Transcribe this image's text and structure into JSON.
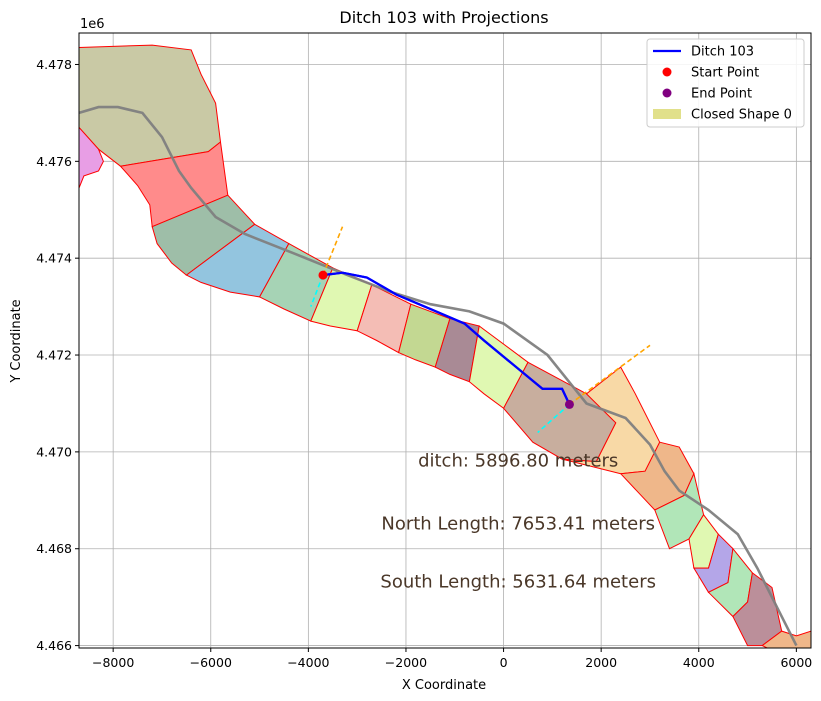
{
  "chart_data": {
    "type": "line",
    "title": "Ditch 103 with Projections",
    "xlabel": "X Coordinate",
    "ylabel": "Y Coordinate",
    "y_offset_label": "1e6",
    "xlim": [
      -8700,
      6300
    ],
    "ylim": [
      4.46595,
      4.47865
    ],
    "grid": true,
    "x_ticks": [
      -8000,
      -6000,
      -4000,
      -2000,
      0,
      2000,
      4000,
      6000
    ],
    "x_tick_labels": [
      "−8000",
      "−6000",
      "−4000",
      "−2000",
      "0",
      "2000",
      "4000",
      "6000"
    ],
    "y_ticks": [
      4.466,
      4.468,
      4.47,
      4.472,
      4.474,
      4.476,
      4.478
    ],
    "y_tick_labels": [
      "4.466",
      "4.468",
      "4.470",
      "4.472",
      "4.474",
      "4.476",
      "4.478"
    ],
    "legend": {
      "placement": "top-right",
      "items": [
        {
          "label": "Ditch 103",
          "kind": "line",
          "color": "#0000ff"
        },
        {
          "label": "Start Point",
          "kind": "dot",
          "color": "#ff0000"
        },
        {
          "label": "End Point",
          "kind": "dot",
          "color": "#800080"
        },
        {
          "label": "Closed Shape 0",
          "kind": "patch",
          "color": "#e1e08a"
        }
      ]
    },
    "annotations": [
      {
        "text": "ditch: 5896.80 meters",
        "x": 300,
        "y": 4.4697
      },
      {
        "text": "North Length: 7653.41 meters",
        "x": 300,
        "y": 4.4684
      },
      {
        "text": "South Length: 5631.64 meters",
        "x": 300,
        "y": 4.4672
      }
    ],
    "series": [
      {
        "name": "Ditch 103",
        "color": "#0000ff",
        "points": [
          [
            -3700,
            4.47365
          ],
          [
            -3300,
            4.4737
          ],
          [
            -2800,
            4.4736
          ],
          [
            -2200,
            4.47325
          ],
          [
            -1500,
            4.47295
          ],
          [
            -800,
            4.47265
          ],
          [
            -400,
            4.4723
          ],
          [
            200,
            4.4718
          ],
          [
            800,
            4.4713
          ],
          [
            1200,
            4.4713
          ],
          [
            1350,
            4.47098
          ]
        ]
      },
      {
        "color": "#808080",
        "points": [
          [
            -8700,
            4.477
          ],
          [
            -8300,
            4.47712
          ],
          [
            -7900,
            4.47712
          ],
          [
            -7400,
            4.477
          ],
          [
            -7000,
            4.4765
          ],
          [
            -6650,
            4.4758
          ],
          [
            -6400,
            4.47545
          ],
          [
            -5900,
            4.47485
          ],
          [
            -5300,
            4.4745
          ],
          [
            -4300,
            4.4741
          ],
          [
            -3200,
            4.47365
          ],
          [
            -2300,
            4.4733
          ],
          [
            -1500,
            4.47305
          ],
          [
            -700,
            4.4729
          ],
          [
            0,
            4.47265
          ],
          [
            900,
            4.472
          ],
          [
            1700,
            4.471
          ],
          [
            2500,
            4.4707
          ],
          [
            3000,
            4.47015
          ],
          [
            3300,
            4.4696
          ],
          [
            3600,
            4.4692
          ],
          [
            4200,
            4.4688
          ],
          [
            4800,
            4.4683
          ],
          [
            5200,
            4.4676
          ],
          [
            5600,
            4.4668
          ],
          [
            6000,
            4.466
          ]
        ]
      },
      {
        "color": "#ffa500",
        "dashed": true,
        "points": [
          [
            -3700,
            4.47365
          ],
          [
            -3300,
            4.47465
          ]
        ]
      },
      {
        "color": "#00ffff",
        "dashed": true,
        "points": [
          [
            -3700,
            4.47365
          ],
          [
            -3950,
            4.473
          ]
        ]
      },
      {
        "color": "#ffa500",
        "dashed": true,
        "points": [
          [
            1350,
            4.47098
          ],
          [
            3000,
            4.4722
          ]
        ]
      },
      {
        "color": "#00ffff",
        "dashed": true,
        "points": [
          [
            1350,
            4.47098
          ],
          [
            700,
            4.4704
          ]
        ]
      }
    ],
    "start_point": {
      "x": -3700,
      "y": 4.47365,
      "color": "#ff0000"
    },
    "end_point": {
      "x": 1350,
      "y": 4.47098,
      "color": "#800080"
    },
    "polygons": [
      {
        "color": "#c9c9a5",
        "points": [
          [
            -8700,
            4.47835
          ],
          [
            -7200,
            4.4784
          ],
          [
            -6400,
            4.4783
          ],
          [
            -6200,
            4.4778
          ],
          [
            -5900,
            4.4772
          ],
          [
            -5800,
            4.4764
          ],
          [
            -6050,
            4.4762
          ],
          [
            -7850,
            4.4759
          ],
          [
            -8300,
            4.47625
          ],
          [
            -8700,
            4.4767
          ]
        ]
      },
      {
        "color": "#e89ee5",
        "points": [
          [
            -8700,
            4.4767
          ],
          [
            -8300,
            4.47625
          ],
          [
            -8200,
            4.476
          ],
          [
            -8300,
            4.4758
          ],
          [
            -8600,
            4.4757
          ],
          [
            -8700,
            4.47545
          ]
        ]
      },
      {
        "color": "#ff8b8b",
        "points": [
          [
            -7850,
            4.4759
          ],
          [
            -6050,
            4.4762
          ],
          [
            -5800,
            4.4764
          ],
          [
            -5650,
            4.4753
          ],
          [
            -7200,
            4.47465
          ],
          [
            -7250,
            4.4751
          ],
          [
            -7500,
            4.4755
          ]
        ]
      },
      {
        "color": "#9ebea8",
        "points": [
          [
            -7200,
            4.47465
          ],
          [
            -5650,
            4.4753
          ],
          [
            -5100,
            4.4747
          ],
          [
            -6500,
            4.47365
          ],
          [
            -6800,
            4.4739
          ],
          [
            -7100,
            4.4743
          ]
        ]
      },
      {
        "color": "#93c5df",
        "points": [
          [
            -6500,
            4.47365
          ],
          [
            -5100,
            4.4747
          ],
          [
            -4400,
            4.4743
          ],
          [
            -5000,
            4.4732
          ],
          [
            -5600,
            4.4733
          ],
          [
            -6200,
            4.4735
          ]
        ]
      },
      {
        "color": "#a6d3b5",
        "points": [
          [
            -5000,
            4.4732
          ],
          [
            -4400,
            4.4743
          ],
          [
            -3500,
            4.4738
          ],
          [
            -3950,
            4.4727
          ],
          [
            -4500,
            4.47295
          ]
        ]
      },
      {
        "color": "#e0f8b2",
        "points": [
          [
            -3950,
            4.4727
          ],
          [
            -3500,
            4.4738
          ],
          [
            -2700,
            4.47345
          ],
          [
            -3000,
            4.4725
          ],
          [
            -3550,
            4.4726
          ]
        ]
      },
      {
        "color": "#f4bdb5",
        "points": [
          [
            -3000,
            4.4725
          ],
          [
            -2700,
            4.47345
          ],
          [
            -1900,
            4.47305
          ],
          [
            -2150,
            4.47205
          ],
          [
            -2600,
            4.4723
          ]
        ]
      },
      {
        "color": "#c3d892",
        "points": [
          [
            -2150,
            4.47205
          ],
          [
            -1900,
            4.47305
          ],
          [
            -1100,
            4.47275
          ],
          [
            -1400,
            4.47175
          ],
          [
            -1800,
            4.4719
          ]
        ]
      },
      {
        "color": "#a98a95",
        "points": [
          [
            -1400,
            4.47175
          ],
          [
            -1100,
            4.47275
          ],
          [
            -500,
            4.4726
          ],
          [
            -700,
            4.47145
          ],
          [
            -1100,
            4.4716
          ]
        ]
      },
      {
        "color": "#e0f8b2",
        "points": [
          [
            -700,
            4.47145
          ],
          [
            -500,
            4.4726
          ],
          [
            500,
            4.47185
          ],
          [
            0,
            4.4709
          ],
          [
            -400,
            4.4712
          ]
        ]
      },
      {
        "color": "#c8ae9e",
        "points": [
          [
            0,
            4.4709
          ],
          [
            500,
            4.47185
          ],
          [
            1700,
            4.4712
          ],
          [
            2300,
            4.4706
          ],
          [
            1900,
            4.4698
          ],
          [
            1200,
            4.46985
          ],
          [
            600,
            4.4702
          ]
        ]
      },
      {
        "color": "#f8d9a6",
        "points": [
          [
            1200,
            4.46985
          ],
          [
            1900,
            4.4698
          ],
          [
            2300,
            4.4706
          ],
          [
            1700,
            4.4712
          ],
          [
            2400,
            4.47175
          ],
          [
            2700,
            4.4712
          ],
          [
            3200,
            4.4702
          ],
          [
            2900,
            4.4696
          ],
          [
            2400,
            4.46955
          ],
          [
            1800,
            4.4697
          ]
        ]
      },
      {
        "color": "#efb78a",
        "points": [
          [
            2400,
            4.46955
          ],
          [
            2900,
            4.4696
          ],
          [
            3200,
            4.4702
          ],
          [
            3600,
            4.4701
          ],
          [
            3900,
            4.46955
          ],
          [
            3700,
            4.4691
          ],
          [
            3100,
            4.4688
          ]
        ]
      },
      {
        "color": "#b1e6b8",
        "points": [
          [
            3100,
            4.4688
          ],
          [
            3700,
            4.4691
          ],
          [
            3900,
            4.46955
          ],
          [
            4100,
            4.4687
          ],
          [
            3800,
            4.4682
          ],
          [
            3400,
            4.468
          ]
        ]
      },
      {
        "color": "#e0f8b2",
        "points": [
          [
            3800,
            4.4682
          ],
          [
            4100,
            4.4687
          ],
          [
            4400,
            4.4683
          ],
          [
            4200,
            4.4676
          ],
          [
            3900,
            4.4676
          ]
        ]
      },
      {
        "color": "#b4a6e8",
        "points": [
          [
            3900,
            4.4676
          ],
          [
            4200,
            4.4676
          ],
          [
            4400,
            4.4683
          ],
          [
            4700,
            4.468
          ],
          [
            4600,
            4.4673
          ],
          [
            4200,
            4.4671
          ]
        ]
      },
      {
        "color": "#b1e6b8",
        "points": [
          [
            4200,
            4.4671
          ],
          [
            4600,
            4.4673
          ],
          [
            4700,
            4.468
          ],
          [
            5100,
            4.4675
          ],
          [
            5000,
            4.4669
          ],
          [
            4700,
            4.4666
          ]
        ]
      },
      {
        "color": "#bb8f9a",
        "points": [
          [
            4700,
            4.4666
          ],
          [
            5000,
            4.4669
          ],
          [
            5100,
            4.4675
          ],
          [
            5500,
            4.4672
          ],
          [
            5700,
            4.4663
          ],
          [
            5300,
            4.466
          ],
          [
            5000,
            4.466
          ]
        ]
      },
      {
        "color": "#efb78a",
        "points": [
          [
            5300,
            4.466
          ],
          [
            5700,
            4.4663
          ],
          [
            6000,
            4.4662
          ],
          [
            6300,
            4.4663
          ],
          [
            6300,
            4.46595
          ],
          [
            5400,
            4.46595
          ]
        ]
      }
    ]
  }
}
